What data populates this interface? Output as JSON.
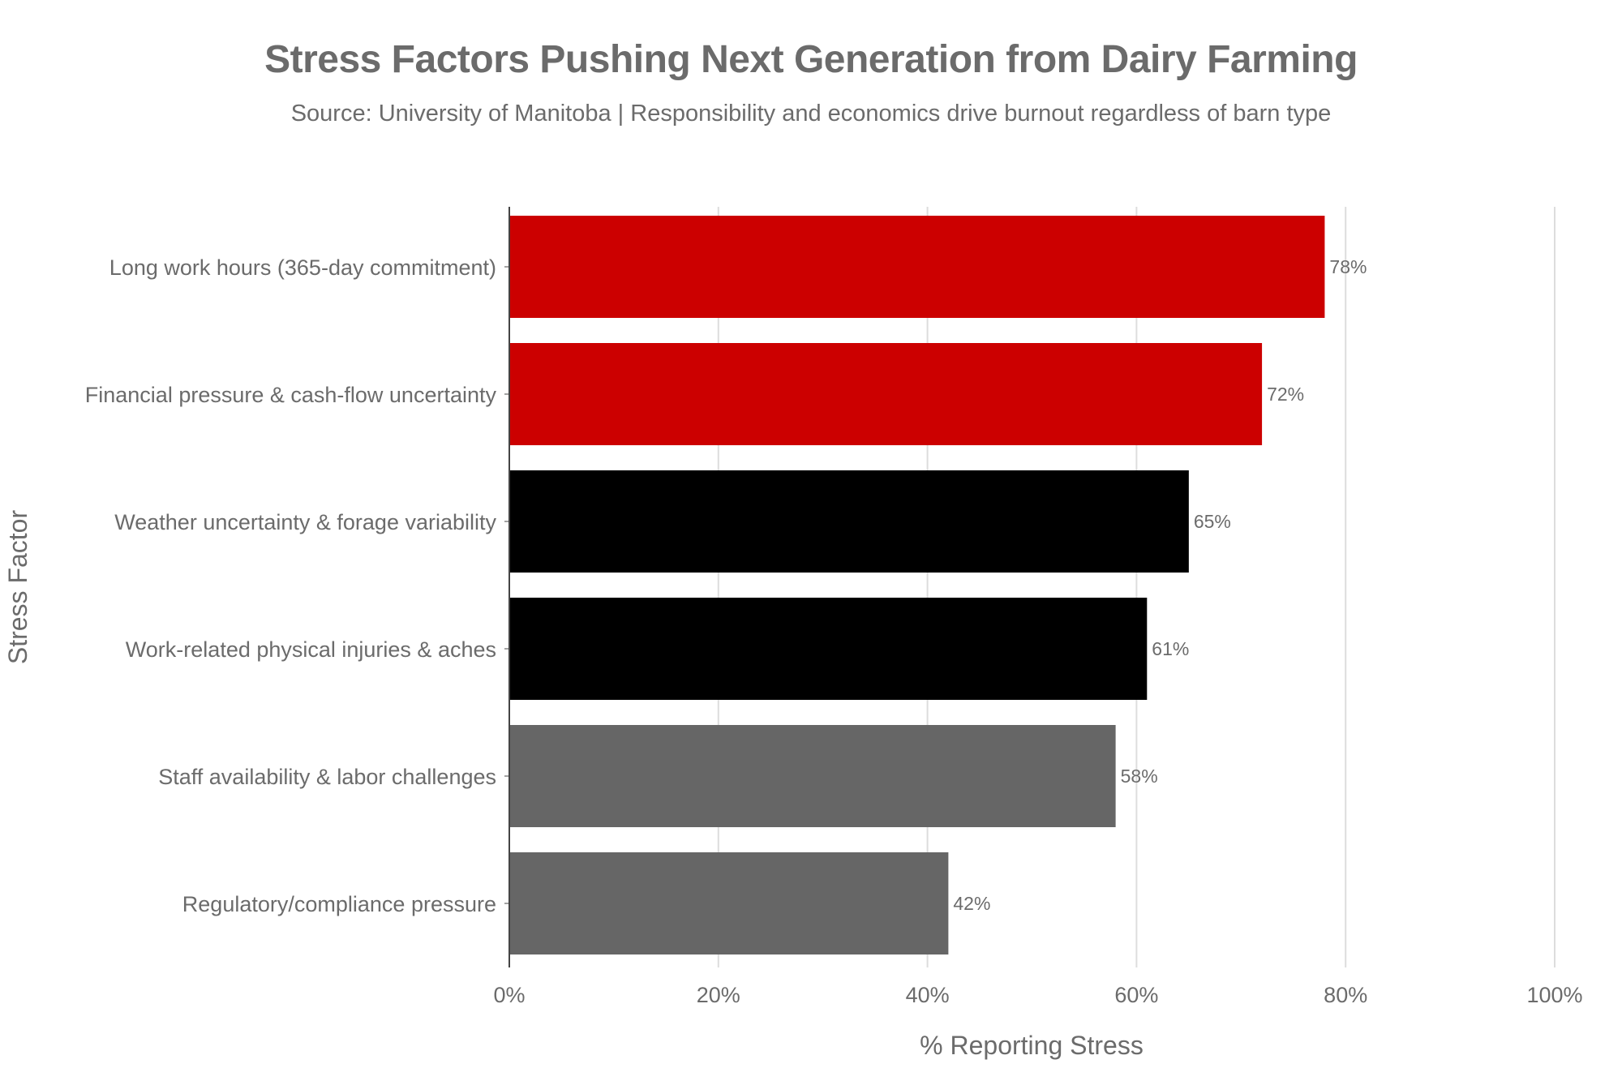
{
  "chart_data": {
    "type": "bar",
    "orientation": "horizontal",
    "title": "Stress Factors Pushing Next Generation from Dairy Farming",
    "subtitle": "Source: University of Manitoba | Responsibility and economics drive burnout regardless of barn type",
    "xlabel": "% Reporting Stress",
    "ylabel": "Stress Factor",
    "xlim": [
      0,
      100
    ],
    "xticks": [
      "0%",
      "20%",
      "40%",
      "60%",
      "80%",
      "100%"
    ],
    "xtick_values": [
      0,
      20,
      40,
      60,
      80,
      100
    ],
    "grid": "vertical",
    "legend": "none",
    "categories": [
      "Long work hours (365-day commitment)",
      "Financial pressure & cash-flow uncertainty",
      "Weather uncertainty & forage variability",
      "Work-related physical injuries & aches",
      "Staff availability & labor challenges",
      "Regulatory/compliance pressure"
    ],
    "values": [
      78,
      72,
      65,
      61,
      58,
      42
    ],
    "data_labels": [
      "78%",
      "72%",
      "65%",
      "61%",
      "58%",
      "42%"
    ],
    "bar_colors": [
      "#cc0000",
      "#cc0000",
      "#000000",
      "#000000",
      "#666666",
      "#666666"
    ]
  },
  "colors": {
    "text": "#6b6b6b",
    "grid": "#dddddd",
    "axis": "#444444",
    "background": "#ffffff"
  }
}
